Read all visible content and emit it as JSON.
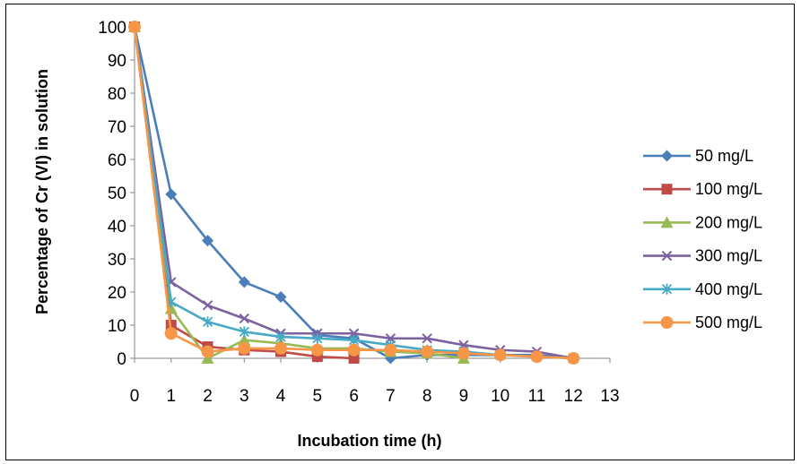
{
  "chart_data": {
    "type": "line",
    "xlabel": "Incubation time (h)",
    "ylabel": "Percentage of Cr (VI) in solution",
    "xlim": [
      0,
      13
    ],
    "ylim": [
      0,
      100
    ],
    "x_ticks": [
      0,
      1,
      2,
      3,
      4,
      5,
      6,
      7,
      8,
      9,
      10,
      11,
      12,
      13
    ],
    "y_ticks": [
      0,
      10,
      20,
      30,
      40,
      50,
      60,
      70,
      80,
      90,
      100
    ],
    "grid": false,
    "legend_position": "right",
    "series": [
      {
        "name": "50 mg/L",
        "color": "#4a7ebb",
        "marker": "diamond",
        "points": [
          [
            0,
            100
          ],
          [
            1,
            49.5
          ],
          [
            2,
            35.5
          ],
          [
            3,
            23
          ],
          [
            4,
            18.5
          ],
          [
            5,
            7
          ],
          [
            6,
            6
          ],
          [
            7,
            0
          ],
          [
            8,
            1
          ],
          [
            9,
            1
          ],
          [
            10,
            1
          ],
          [
            11,
            1
          ],
          [
            12,
            0
          ]
        ]
      },
      {
        "name": "100 mg/L",
        "color": "#be4b48",
        "marker": "square",
        "points": [
          [
            0,
            100
          ],
          [
            1,
            10
          ],
          [
            2,
            3.5
          ],
          [
            3,
            2.5
          ],
          [
            4,
            2
          ],
          [
            5,
            0.5
          ],
          [
            6,
            0
          ]
        ]
      },
      {
        "name": "200 mg/L",
        "color": "#98b954",
        "marker": "triangle",
        "points": [
          [
            0,
            100
          ],
          [
            1,
            15
          ],
          [
            2,
            0
          ],
          [
            3,
            5.5
          ],
          [
            4,
            4.5
          ],
          [
            5,
            3
          ],
          [
            6,
            3
          ],
          [
            7,
            2
          ],
          [
            8,
            1.5
          ],
          [
            9,
            0
          ]
        ]
      },
      {
        "name": "300 mg/L",
        "color": "#7d60a0",
        "marker": "x",
        "points": [
          [
            0,
            100
          ],
          [
            1,
            23
          ],
          [
            2,
            16
          ],
          [
            3,
            12
          ],
          [
            4,
            7.5
          ],
          [
            5,
            7.5
          ],
          [
            6,
            7.5
          ],
          [
            7,
            6
          ],
          [
            8,
            6
          ],
          [
            9,
            4
          ],
          [
            10,
            2.5
          ],
          [
            11,
            2
          ],
          [
            12,
            0
          ]
        ]
      },
      {
        "name": "400 mg/L",
        "color": "#46aac5",
        "marker": "star",
        "points": [
          [
            0,
            100
          ],
          [
            1,
            17
          ],
          [
            2,
            11
          ],
          [
            3,
            8
          ],
          [
            4,
            6.5
          ],
          [
            5,
            6
          ],
          [
            6,
            5.5
          ],
          [
            7,
            4
          ],
          [
            8,
            2.5
          ],
          [
            9,
            2
          ],
          [
            10,
            1
          ],
          [
            11,
            0.5
          ],
          [
            12,
            0
          ]
        ]
      },
      {
        "name": "500 mg/L",
        "color": "#f79646",
        "marker": "circle",
        "points": [
          [
            0,
            100
          ],
          [
            1,
            7.5
          ],
          [
            2,
            2
          ],
          [
            3,
            3
          ],
          [
            4,
            3
          ],
          [
            5,
            2.5
          ],
          [
            6,
            2.5
          ],
          [
            7,
            2.5
          ],
          [
            8,
            2
          ],
          [
            9,
            1.5
          ],
          [
            10,
            1
          ],
          [
            11,
            0.5
          ],
          [
            12,
            0
          ]
        ]
      }
    ]
  }
}
